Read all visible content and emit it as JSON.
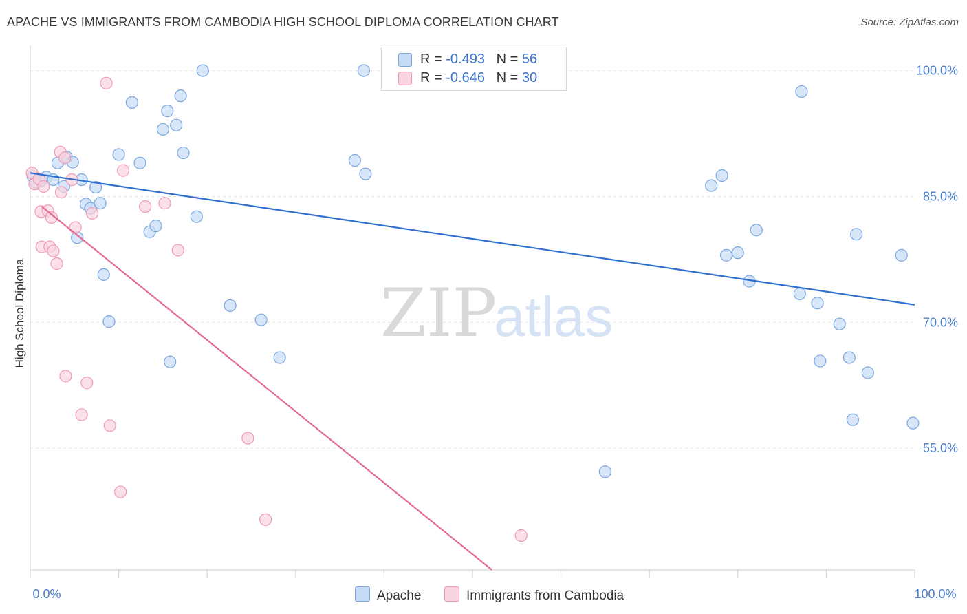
{
  "header": {
    "title": "APACHE VS IMMIGRANTS FROM CAMBODIA HIGH SCHOOL DIPLOMA CORRELATION CHART",
    "source": "Source: ZipAtlas.com"
  },
  "watermark": {
    "zip": "ZIP",
    "atlas": "atlas"
  },
  "legend": {
    "rows": [
      {
        "r_label": "R = ",
        "r_value": "-0.493",
        "n_label": "N = ",
        "n_value": "56",
        "color": "#7aa7e0"
      },
      {
        "r_label": "R = ",
        "r_value": "-0.646",
        "n_label": "N = ",
        "n_value": "30",
        "color": "#ef9ab5"
      }
    ]
  },
  "bottom_legend": {
    "apache": "Apache",
    "cambodia": "Immigrants from Cambodia"
  },
  "chart_data": {
    "type": "scatter",
    "title": "APACHE VS IMMIGRANTS FROM CAMBODIA HIGH SCHOOL DIPLOMA CORRELATION CHART",
    "ylabel": "High School Diploma",
    "xlabel": "",
    "xlim": [
      0,
      100
    ],
    "ylim": [
      40.5,
      103
    ],
    "x_tick_labels": [
      "0.0%",
      "100.0%"
    ],
    "y_ticks": [
      55,
      70,
      85,
      100
    ],
    "y_tick_labels": [
      "55.0%",
      "70.0%",
      "85.0%",
      "100.0%"
    ],
    "grid": true,
    "legend_position": "top-center",
    "series": [
      {
        "name": "Apache",
        "color": "#7aa7e0",
        "fill": "#c6dbf5",
        "trend": {
          "x": [
            0,
            100
          ],
          "y": [
            87.8,
            72.1
          ],
          "color": "#2f6fd0"
        },
        "points": [
          [
            0.3,
            87.4
          ],
          [
            0.6,
            86.7
          ],
          [
            1.2,
            86.9
          ],
          [
            1.8,
            87.3
          ],
          [
            2.6,
            87.0
          ],
          [
            3.1,
            89.0
          ],
          [
            4.1,
            89.7
          ],
          [
            4.8,
            89.1
          ],
          [
            3.8,
            86.2
          ],
          [
            5.8,
            87.0
          ],
          [
            7.4,
            86.1
          ],
          [
            6.3,
            84.1
          ],
          [
            6.8,
            83.6
          ],
          [
            7.9,
            84.2
          ],
          [
            5.3,
            80.1
          ],
          [
            8.3,
            75.7
          ],
          [
            8.9,
            70.1
          ],
          [
            10.0,
            90.0
          ],
          [
            11.5,
            96.2
          ],
          [
            12.4,
            89.0
          ],
          [
            15.0,
            93.0
          ],
          [
            15.5,
            95.2
          ],
          [
            16.5,
            93.5
          ],
          [
            17.0,
            97.0
          ],
          [
            17.3,
            90.2
          ],
          [
            19.5,
            100.0
          ],
          [
            13.5,
            80.8
          ],
          [
            14.2,
            81.5
          ],
          [
            18.8,
            82.6
          ],
          [
            15.8,
            65.3
          ],
          [
            22.6,
            72.0
          ],
          [
            26.1,
            70.3
          ],
          [
            28.2,
            65.8
          ],
          [
            36.7,
            89.3
          ],
          [
            37.7,
            100.0
          ],
          [
            37.9,
            87.7
          ],
          [
            42.6,
            100.0
          ],
          [
            65.0,
            52.2
          ],
          [
            77.0,
            86.3
          ],
          [
            78.2,
            87.5
          ],
          [
            78.7,
            78.0
          ],
          [
            80.0,
            78.3
          ],
          [
            81.3,
            74.9
          ],
          [
            82.1,
            81.0
          ],
          [
            87.2,
            97.5
          ],
          [
            87.0,
            73.4
          ],
          [
            89.0,
            72.3
          ],
          [
            89.3,
            65.4
          ],
          [
            91.5,
            69.8
          ],
          [
            92.6,
            65.8
          ],
          [
            93.0,
            58.4
          ],
          [
            93.4,
            80.5
          ],
          [
            94.7,
            64.0
          ],
          [
            98.5,
            78.0
          ],
          [
            99.8,
            58.0
          ],
          [
            42.5,
            99.9
          ]
        ]
      },
      {
        "name": "Immigrants from Cambodia",
        "color": "#ef9ab5",
        "fill": "#f9d3df",
        "trend": {
          "x": [
            1.3,
            52.2
          ],
          "y": [
            83.8,
            40.5
          ],
          "color": "#e66a96"
        },
        "points": [
          [
            0.2,
            87.8
          ],
          [
            0.5,
            86.5
          ],
          [
            1.0,
            87.1
          ],
          [
            1.5,
            86.2
          ],
          [
            3.4,
            90.3
          ],
          [
            3.9,
            89.6
          ],
          [
            4.7,
            87.0
          ],
          [
            3.5,
            85.5
          ],
          [
            1.2,
            83.2
          ],
          [
            2.0,
            83.3
          ],
          [
            2.4,
            82.5
          ],
          [
            7.0,
            83.0
          ],
          [
            5.1,
            81.3
          ],
          [
            1.3,
            79.0
          ],
          [
            2.2,
            79.0
          ],
          [
            2.6,
            78.5
          ],
          [
            3.0,
            77.0
          ],
          [
            8.6,
            98.5
          ],
          [
            10.5,
            88.1
          ],
          [
            13.0,
            83.8
          ],
          [
            15.2,
            84.2
          ],
          [
            16.7,
            78.6
          ],
          [
            4.0,
            63.6
          ],
          [
            6.4,
            62.8
          ],
          [
            5.8,
            59.0
          ],
          [
            9.0,
            57.7
          ],
          [
            10.2,
            49.8
          ],
          [
            24.6,
            56.2
          ],
          [
            26.6,
            46.5
          ],
          [
            55.5,
            44.6
          ]
        ]
      }
    ]
  }
}
